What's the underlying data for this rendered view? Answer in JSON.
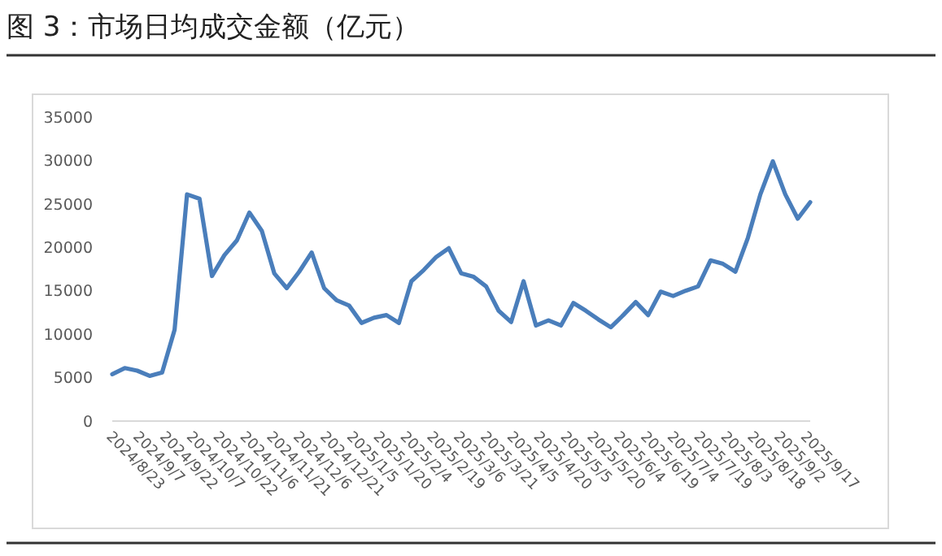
{
  "chart_data": {
    "type": "line",
    "title": "图 3：市场日均成交金额（亿元）",
    "x": [
      "2024-08-23",
      "2024-08-30",
      "2024-09-06",
      "2024-09-13",
      "2024-09-20",
      "2024-09-27",
      "2024-10-04",
      "2024-10-11",
      "2024-10-18",
      "2024-10-25",
      "2024-11-01",
      "2024-11-08",
      "2024-11-15",
      "2024-11-22",
      "2024-11-29",
      "2024-12-06",
      "2024-12-13",
      "2024-12-20",
      "2024-12-27",
      "2025-01-03",
      "2025-01-10",
      "2025-01-17",
      "2025-01-24",
      "2025-01-31",
      "2025-02-07",
      "2025-02-14",
      "2025-02-21",
      "2025-02-28",
      "2025-03-07",
      "2025-03-14",
      "2025-03-21",
      "2025-03-28",
      "2025-04-04",
      "2025-04-11",
      "2025-04-18",
      "2025-04-25",
      "2025-05-02",
      "2025-05-09",
      "2025-05-16",
      "2025-05-23",
      "2025-05-30",
      "2025-06-06",
      "2025-06-13",
      "2025-06-20",
      "2025-06-27",
      "2025-07-04",
      "2025-07-11",
      "2025-07-18",
      "2025-07-25",
      "2025-08-01",
      "2025-08-08",
      "2025-08-15",
      "2025-08-22",
      "2025-08-29",
      "2025-09-05",
      "2025-09-12",
      "2025-09-19"
    ],
    "series": [
      {
        "color": "#4a7ebb",
        "values": [
          5400,
          6100,
          5800,
          5200,
          5600,
          10500,
          26100,
          25600,
          16700,
          19100,
          20800,
          24000,
          21900,
          17000,
          15300,
          17200,
          19400,
          15300,
          13900,
          13300,
          11300,
          11900,
          12200,
          11300,
          16100,
          17400,
          18900,
          19900,
          17000,
          16600,
          15500,
          12700,
          11400,
          16100,
          11000,
          11600,
          11000,
          13600,
          12700,
          11700,
          10800,
          12200,
          13700,
          12200,
          14900,
          14400,
          15000,
          15500,
          18500,
          18100,
          17200,
          21100,
          26100,
          29900,
          26100,
          23300,
          25200
        ]
      }
    ],
    "xlim": [
      "2024-08-23",
      "2025-09-19"
    ],
    "xticks": [
      {
        "value": "2024-08-23",
        "label": "2024/8/23"
      },
      {
        "value": "2024-09-07",
        "label": "2024/9/7"
      },
      {
        "value": "2024-09-22",
        "label": "2024/9/22"
      },
      {
        "value": "2024-10-07",
        "label": "2024/10/7"
      },
      {
        "value": "2024-10-22",
        "label": "2024/10/22"
      },
      {
        "value": "2024-11-06",
        "label": "2024/11/6"
      },
      {
        "value": "2024-11-21",
        "label": "2024/11/21"
      },
      {
        "value": "2024-12-06",
        "label": "2024/12/6"
      },
      {
        "value": "2024-12-21",
        "label": "2024/12/21"
      },
      {
        "value": "2025-01-05",
        "label": "2025/1/5"
      },
      {
        "value": "2025-01-20",
        "label": "2025/1/20"
      },
      {
        "value": "2025-02-04",
        "label": "2025/2/4"
      },
      {
        "value": "2025-02-19",
        "label": "2025/2/19"
      },
      {
        "value": "2025-03-06",
        "label": "2025/3/6"
      },
      {
        "value": "2025-03-21",
        "label": "2025/3/21"
      },
      {
        "value": "2025-04-05",
        "label": "2025/4/5"
      },
      {
        "value": "2025-04-20",
        "label": "2025/4/20"
      },
      {
        "value": "2025-05-05",
        "label": "2025/5/5"
      },
      {
        "value": "2025-05-20",
        "label": "2025/5/20"
      },
      {
        "value": "2025-06-04",
        "label": "2025/6/4"
      },
      {
        "value": "2025-06-19",
        "label": "2025/6/19"
      },
      {
        "value": "2025-07-04",
        "label": "2025/7/4"
      },
      {
        "value": "2025-07-19",
        "label": "2025/7/19"
      },
      {
        "value": "2025-08-03",
        "label": "2025/8/3"
      },
      {
        "value": "2025-08-18",
        "label": "2025/8/18"
      },
      {
        "value": "2025-09-02",
        "label": "2025/9/2"
      },
      {
        "value": "2025-09-17",
        "label": "2025/9/17"
      }
    ],
    "ylim": [
      0,
      35000
    ],
    "yticks": [
      0,
      5000,
      10000,
      15000,
      20000,
      25000,
      30000,
      35000
    ],
    "grid": false,
    "marker": "none",
    "line_style": "solid"
  }
}
